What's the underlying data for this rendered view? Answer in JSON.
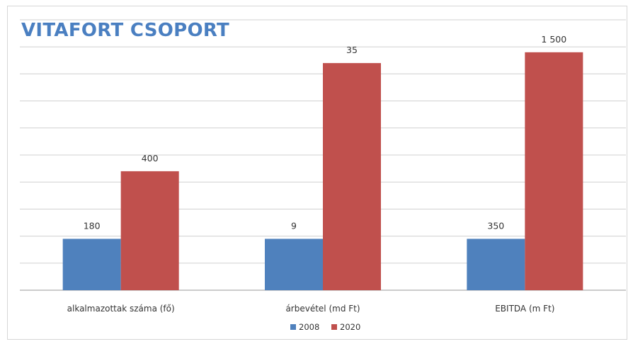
{
  "chart_data": {
    "type": "bar",
    "title": "VITAFORT CSOPORT",
    "categories": [
      "alkalmazottak száma (fő)",
      "árbevétel (md Ft)",
      "EBITDA (m Ft)"
    ],
    "series": [
      {
        "name": "2008",
        "color": "#4f81bd",
        "values": [
          180,
          9,
          350
        ],
        "labels": [
          "180",
          "9",
          "350"
        ],
        "relative_height": [
          0.19,
          0.19,
          0.19
        ]
      },
      {
        "name": "2020",
        "color": "#c0504d",
        "values": [
          400,
          35,
          1500
        ],
        "labels": [
          "400",
          "35",
          "1 500"
        ],
        "relative_height": [
          0.44,
          0.84,
          0.88
        ]
      }
    ],
    "xlabel": "",
    "ylabel": "",
    "grid": true,
    "legend_position": "bottom"
  }
}
